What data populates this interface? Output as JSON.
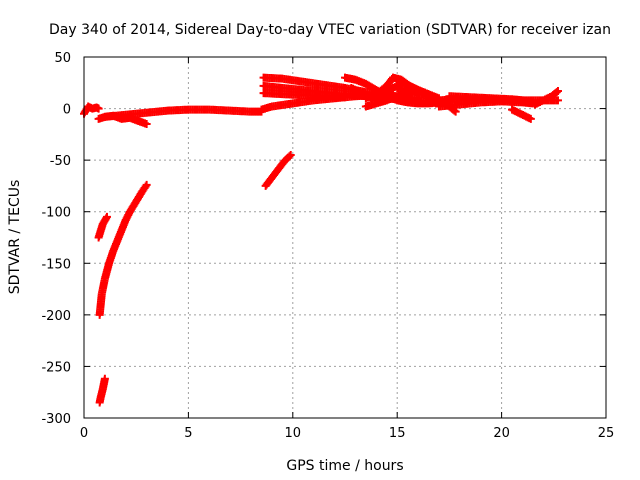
{
  "chart_data": {
    "type": "scatter",
    "title": "Day 340 of 2014, Sidereal Day-to-day VTEC variation (SDTVAR) for receiver izan",
    "xlabel": "GPS time / hours",
    "ylabel": "SDTVAR / TECUs",
    "xlim": [
      0,
      25
    ],
    "ylim": [
      -300,
      50
    ],
    "xticks": [
      "0",
      "5",
      "10",
      "15",
      "20",
      "25"
    ],
    "yticks": [
      "50",
      "0",
      "-50",
      "-100",
      "-150",
      "-200",
      "-250",
      "-300"
    ],
    "grid": true,
    "color": "#ff0000",
    "series": [
      {
        "x": [
          0.0,
          0.2,
          0.4,
          0.6,
          0.7
        ],
        "y": [
          -5,
          2,
          0,
          1,
          0
        ]
      },
      {
        "x": [
          0.7,
          1.0,
          1.4,
          1.8,
          2.2,
          2.6,
          3.0
        ],
        "y": [
          -10,
          -8,
          -7,
          -10,
          -9,
          -12,
          -15
        ]
      },
      {
        "x": [
          0.7,
          0.9,
          1.1
        ],
        "y": [
          -125,
          -112,
          -105
        ]
      },
      {
        "x": [
          0.75,
          0.85,
          1.0,
          1.2,
          1.4,
          1.6,
          1.8,
          2.0,
          2.2,
          2.5,
          2.8,
          3.0
        ],
        "y": [
          -200,
          -180,
          -165,
          -150,
          -138,
          -128,
          -118,
          -108,
          -100,
          -90,
          -80,
          -74
        ]
      },
      {
        "x": [
          0.75,
          0.8,
          0.9,
          1.0
        ],
        "y": [
          -285,
          -280,
          -272,
          -262
        ]
      },
      {
        "x": [
          1.0,
          2.0,
          3.0,
          4.0,
          5.0,
          6.0,
          7.0,
          8.0,
          8.5
        ],
        "y": [
          -8,
          -6,
          -4,
          -2,
          -1,
          -1,
          -2,
          -3,
          -3
        ]
      },
      {
        "x": [
          8.7,
          9.0,
          9.3,
          9.6,
          9.9
        ],
        "y": [
          -75,
          -67,
          -59,
          -51,
          -45
        ]
      },
      {
        "x": [
          8.5,
          9.0,
          10.0,
          11.0,
          12.0,
          13.0,
          14.0,
          15.0,
          16.0
        ],
        "y": [
          -1,
          2,
          5,
          8,
          10,
          12,
          13,
          12,
          10
        ]
      },
      {
        "x": [
          8.6,
          9.5,
          10.5,
          11.5,
          12.5,
          13.5,
          14.5,
          15.5
        ],
        "y": [
          30,
          29,
          26,
          23,
          20,
          16,
          13,
          10
        ]
      },
      {
        "x": [
          8.6,
          9.5,
          10.5,
          11.5,
          12.5,
          13.5,
          14.5,
          15.5
        ],
        "y": [
          22,
          20,
          18,
          16,
          14,
          12,
          10,
          8
        ]
      },
      {
        "x": [
          8.6,
          9.5,
          10.5,
          11.5,
          12.5
        ],
        "y": [
          15,
          14,
          13,
          12,
          11
        ]
      },
      {
        "x": [
          12.5,
          13.0,
          13.5,
          14.0,
          14.5,
          15.0,
          15.5,
          16.0,
          16.5,
          17.0,
          17.5
        ],
        "y": [
          30,
          28,
          24,
          18,
          12,
          8,
          6,
          5,
          5,
          6,
          7
        ]
      },
      {
        "x": [
          12.8,
          13.3,
          13.8,
          14.3,
          14.8,
          15.3,
          15.8,
          16.3,
          16.8
        ],
        "y": [
          20,
          15,
          10,
          15,
          20,
          25,
          20,
          15,
          10
        ]
      },
      {
        "x": [
          13.5,
          14.0,
          14.5,
          14.8,
          15.2,
          15.6,
          16.0,
          16.5,
          17.0
        ],
        "y": [
          10,
          14,
          22,
          30,
          28,
          22,
          18,
          14,
          10
        ]
      },
      {
        "x": [
          13.5,
          14.0,
          14.5,
          15.0,
          15.5,
          16.0,
          16.5,
          17.0
        ],
        "y": [
          2,
          5,
          8,
          12,
          15,
          18,
          14,
          8
        ]
      },
      {
        "x": [
          15.0,
          15.5,
          16.0,
          16.5,
          17.0,
          17.5,
          17.8
        ],
        "y": [
          20,
          18,
          15,
          12,
          8,
          2,
          -3
        ]
      },
      {
        "x": [
          16.0,
          17.0,
          18.0,
          19.0,
          20.0,
          21.0,
          22.0,
          22.7
        ],
        "y": [
          6,
          8,
          9,
          9,
          8,
          8,
          8,
          8
        ]
      },
      {
        "x": [
          17.0,
          18.0,
          19.0,
          20.0,
          21.0,
          21.5
        ],
        "y": [
          2,
          4,
          6,
          7,
          6,
          5
        ]
      },
      {
        "x": [
          17.5,
          18.5,
          19.5,
          20.5,
          21.0,
          21.5
        ],
        "y": [
          12,
          11,
          10,
          9,
          8,
          6
        ]
      },
      {
        "x": [
          20.5,
          20.8,
          21.1,
          21.4
        ],
        "y": [
          -1,
          -4,
          -7,
          -10
        ]
      },
      {
        "x": [
          21.6,
          22.0,
          22.4,
          22.7
        ],
        "y": [
          4,
          8,
          12,
          17
        ]
      }
    ]
  }
}
